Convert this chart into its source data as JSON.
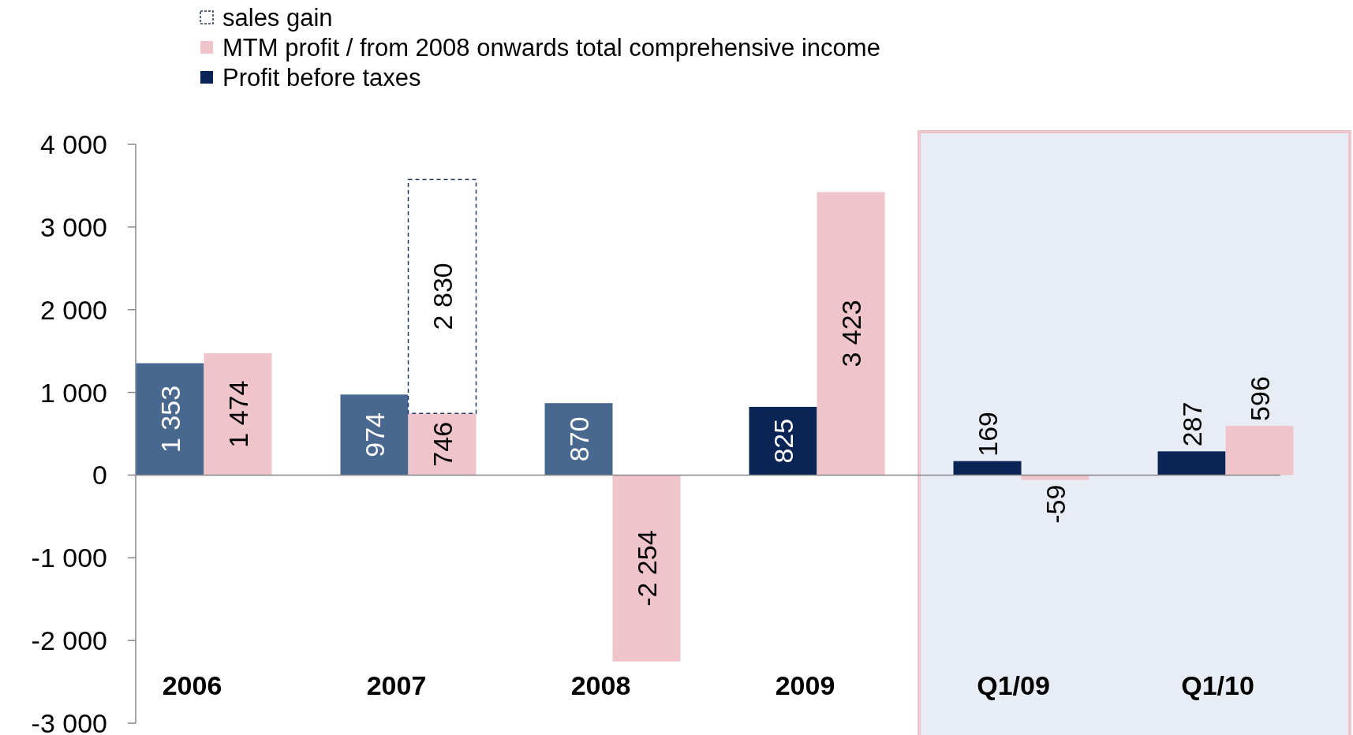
{
  "chart_data": {
    "type": "bar",
    "categories": [
      "2006",
      "2007",
      "2008",
      "2009",
      "Q1/09",
      "Q1/10"
    ],
    "series": [
      {
        "name": "Profit before taxes",
        "color": "#0a2456",
        "colors": [
          "#48688f",
          "#48688f",
          "#48688f",
          "#0a2456",
          "#0a2456",
          "#0a2456"
        ],
        "values": [
          1353,
          974,
          870,
          825,
          169,
          287
        ],
        "value_labels": [
          "1 353",
          "974",
          "870",
          "825",
          "169",
          "287"
        ]
      },
      {
        "name": "MTM profit / from 2008 onwards total comprehensive income",
        "color": "#f0c4cb",
        "values": [
          1474,
          746,
          -2254,
          3423,
          -59,
          596
        ],
        "value_labels": [
          "1 474",
          "746",
          "-2 254",
          "3 423",
          "-59",
          "596"
        ]
      },
      {
        "name": "sales gain",
        "color": "#1f3864",
        "line_style": "dashed",
        "values": [
          null,
          2830,
          null,
          null,
          null,
          null
        ],
        "base": [
          null,
          746,
          null,
          null,
          null,
          null
        ],
        "value_labels": [
          null,
          "2 830",
          null,
          null,
          null,
          null
        ]
      }
    ],
    "ylim": [
      -3000,
      4000
    ],
    "yticks": [
      {
        "value": -3000,
        "label": "-3 000"
      },
      {
        "value": -2000,
        "label": "-2 000"
      },
      {
        "value": -1000,
        "label": "-1 000"
      },
      {
        "value": 0,
        "label": "0"
      },
      {
        "value": 1000,
        "label": "1 000"
      },
      {
        "value": 2000,
        "label": "2 000"
      },
      {
        "value": 3000,
        "label": "3 000"
      },
      {
        "value": 4000,
        "label": "4 000"
      }
    ],
    "bands": [
      {
        "axis": "x",
        "from": "Q1/09",
        "to": "Q1/10",
        "color": "#e8edf5"
      }
    ],
    "legend": "top left"
  }
}
